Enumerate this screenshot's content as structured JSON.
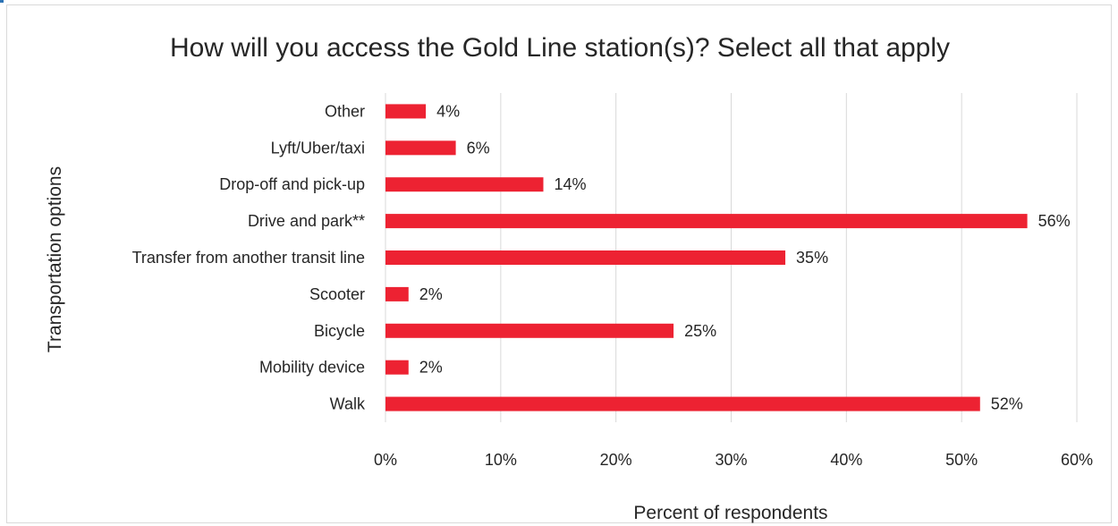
{
  "chart_data": {
    "type": "bar",
    "orientation": "horizontal",
    "title": "How will you access the Gold Line station(s)? Select all that apply",
    "xlabel": "Percent of respondents",
    "ylabel": "Transportation options",
    "categories": [
      "Other",
      "Lyft/Uber/taxi",
      "Drop-off and pick-up",
      "Drive and park**",
      "Transfer from another transit line",
      "Scooter",
      "Bicycle",
      "Mobility device",
      "Walk"
    ],
    "values": [
      3.5,
      6.1,
      13.7,
      55.7,
      34.7,
      2.0,
      25.0,
      2.0,
      51.6
    ],
    "data_labels": [
      "4%",
      "6%",
      "14%",
      "56%",
      "35%",
      "2%",
      "25%",
      "2%",
      "52%"
    ],
    "xlim": [
      0,
      60
    ],
    "xticks": [
      0,
      10,
      20,
      30,
      40,
      50,
      60
    ],
    "xtick_labels": [
      "0%",
      "10%",
      "20%",
      "30%",
      "40%",
      "50%",
      "60%"
    ],
    "grid": "vertical",
    "legend": "none",
    "bar_color": "#ed2232",
    "gridline_color": "#d9d9d9"
  }
}
